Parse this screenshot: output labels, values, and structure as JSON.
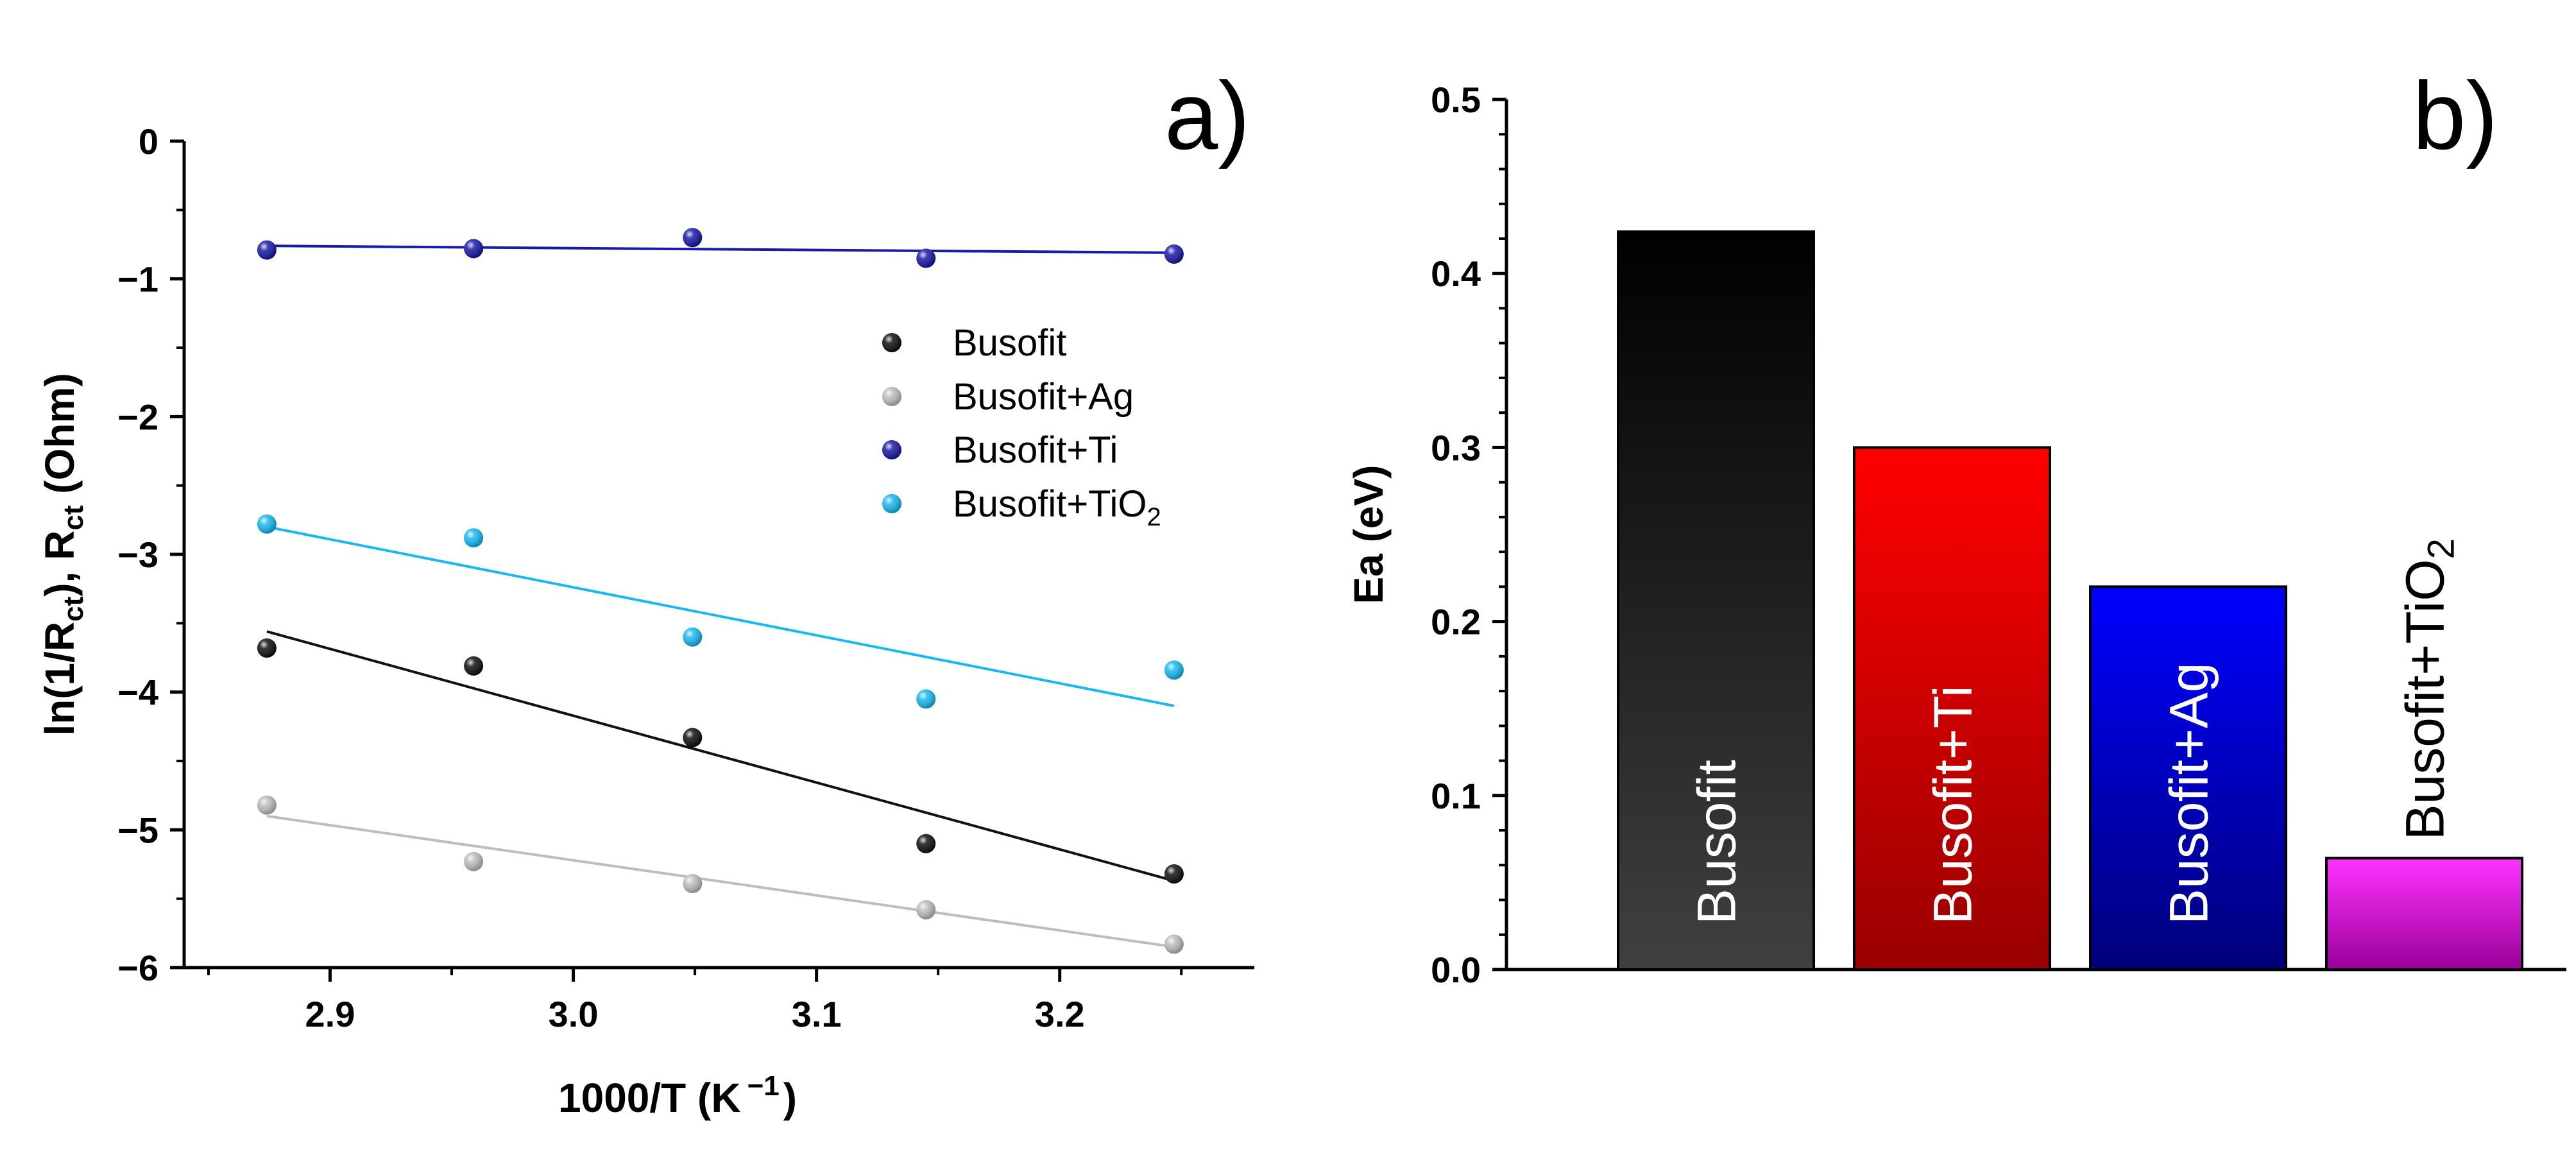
{
  "chart_data": [
    {
      "type": "scatter",
      "panel_label": "a)",
      "x_label": "1000/T (K",
      "x_label_exp": "−1",
      "x_label_close": ")",
      "y_label_parts": [
        "ln(1/R",
        "ct",
        "), R",
        "ct",
        " (Ohm)"
      ],
      "xlim": [
        2.84,
        3.28
      ],
      "ylim": [
        -6,
        0
      ],
      "x_ticks": [
        2.9,
        3.0,
        3.1,
        3.2
      ],
      "x_tick_labels": [
        "2.9",
        "3.0",
        "3.1",
        "3.2"
      ],
      "y_ticks": [
        0,
        -1,
        -2,
        -3,
        -4,
        -5,
        -6
      ],
      "y_tick_labels": [
        "0",
        "−1",
        "−2",
        "−3",
        "−4",
        "−5",
        "−6"
      ],
      "x": [
        2.874,
        2.959,
        3.049,
        3.145,
        3.247
      ],
      "series": [
        {
          "name": "Busofit",
          "legend": "Busofit",
          "color": "#111111",
          "values": [
            -3.68,
            -3.81,
            -4.33,
            -5.1,
            -5.32
          ],
          "fit": [
            [
              2.874,
              -3.56
            ],
            [
              3.247,
              -5.37
            ]
          ]
        },
        {
          "name": "Busofit+Ag",
          "legend": "Busofit+Ag",
          "color": "#bdbdbd",
          "values": [
            -4.82,
            -5.23,
            -5.39,
            -5.58,
            -5.83
          ],
          "fit": [
            [
              2.874,
              -4.9
            ],
            [
              3.247,
              -5.85
            ]
          ]
        },
        {
          "name": "Busofit+Ti",
          "legend": "Busofit+Ti",
          "color": "#1a1aa6",
          "values": [
            -0.79,
            -0.78,
            -0.7,
            -0.85,
            -0.82
          ],
          "fit": [
            [
              2.874,
              -0.76
            ],
            [
              3.247,
              -0.81
            ]
          ]
        },
        {
          "name": "Busofit+TiO2",
          "legend": "Busofit+TiO",
          "legend_sub": "2",
          "color": "#1ab8ee",
          "values": [
            -2.78,
            -2.88,
            -3.6,
            -4.05,
            -3.84
          ],
          "fit": [
            [
              2.874,
              -2.8
            ],
            [
              3.247,
              -4.1
            ]
          ]
        }
      ]
    },
    {
      "type": "bar",
      "panel_label": "b)",
      "y_label": "Ea (eV)",
      "ylim": [
        0,
        0.5
      ],
      "y_ticks": [
        0,
        0.1,
        0.2,
        0.3,
        0.4,
        0.5
      ],
      "y_tick_labels": [
        "0.0",
        "0.1",
        "0.2",
        "0.3",
        "0.4",
        "0.5"
      ],
      "categories": [
        "Busofit",
        "Busofit+Ti",
        "Busofit+Ag",
        "Busofit+TiO2"
      ],
      "bar_labels": [
        {
          "text": "Busofit",
          "sub": ""
        },
        {
          "text": "Busofit+Ti",
          "sub": ""
        },
        {
          "text": "Busofit+Ag",
          "sub": ""
        },
        {
          "text": "Busofit+TiO",
          "sub": "2"
        }
      ],
      "values": [
        0.424,
        0.3,
        0.22,
        0.064
      ],
      "colors": [
        [
          "#000000",
          "#404040"
        ],
        [
          "#ff0000",
          "#990000"
        ],
        [
          "#0000ff",
          "#00007a"
        ],
        [
          "#ff33ff",
          "#990099"
        ]
      ]
    }
  ]
}
